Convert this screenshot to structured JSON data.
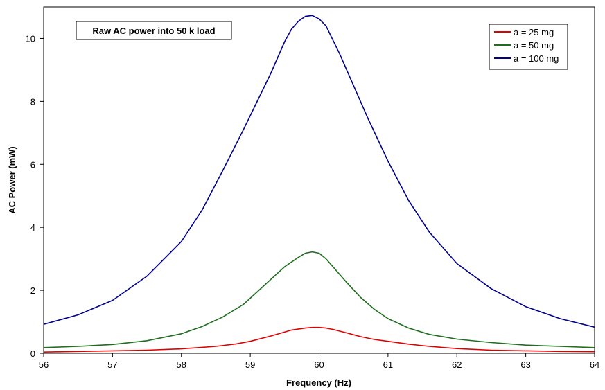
{
  "chart_data": {
    "type": "line",
    "title": "Raw AC power into 50 k load",
    "xlabel": "Frequency (Hz)",
    "ylabel": "AC Power (mW)",
    "xlim": [
      56,
      64
    ],
    "ylim": [
      0,
      11
    ],
    "x_ticks": [
      "56",
      "57",
      "58",
      "59",
      "60",
      "61",
      "62",
      "63",
      "64"
    ],
    "y_ticks": [
      "0",
      "2",
      "4",
      "6",
      "8",
      "10"
    ],
    "grid": false,
    "legend_position": "top-right",
    "series": [
      {
        "name": "a = 25 mg",
        "color": "#e00000",
        "x": [
          56.0,
          56.5,
          57.0,
          57.5,
          58.0,
          58.5,
          58.8,
          59.0,
          59.3,
          59.6,
          59.8,
          59.9,
          60.0,
          60.1,
          60.2,
          60.4,
          60.6,
          60.8,
          61.0,
          61.3,
          61.6,
          62.0,
          62.5,
          63.0,
          63.5,
          64.0
        ],
        "values": [
          0.04,
          0.06,
          0.08,
          0.1,
          0.14,
          0.22,
          0.3,
          0.38,
          0.55,
          0.74,
          0.8,
          0.82,
          0.82,
          0.8,
          0.76,
          0.65,
          0.53,
          0.44,
          0.38,
          0.29,
          0.22,
          0.15,
          0.1,
          0.08,
          0.06,
          0.05
        ]
      },
      {
        "name": "a = 50 mg",
        "color": "#1e6e1e",
        "x": [
          56.0,
          56.5,
          57.0,
          57.5,
          58.0,
          58.3,
          58.6,
          58.9,
          59.1,
          59.3,
          59.5,
          59.7,
          59.8,
          59.9,
          60.0,
          60.1,
          60.2,
          60.4,
          60.6,
          60.8,
          61.0,
          61.3,
          61.6,
          62.0,
          62.5,
          63.0,
          63.5,
          64.0
        ],
        "values": [
          0.18,
          0.22,
          0.28,
          0.4,
          0.62,
          0.85,
          1.15,
          1.55,
          1.95,
          2.35,
          2.75,
          3.05,
          3.18,
          3.22,
          3.18,
          3.0,
          2.75,
          2.25,
          1.78,
          1.4,
          1.1,
          0.8,
          0.6,
          0.45,
          0.34,
          0.26,
          0.22,
          0.18
        ]
      },
      {
        "name": "a = 100 mg",
        "color": "#00008b",
        "x": [
          56.0,
          56.5,
          57.0,
          57.5,
          58.0,
          58.3,
          58.6,
          58.9,
          59.1,
          59.3,
          59.5,
          59.6,
          59.7,
          59.8,
          59.9,
          60.0,
          60.1,
          60.3,
          60.5,
          60.7,
          61.0,
          61.3,
          61.6,
          62.0,
          62.5,
          63.0,
          63.5,
          64.0
        ],
        "values": [
          0.92,
          1.22,
          1.68,
          2.45,
          3.55,
          4.55,
          5.8,
          7.1,
          8.0,
          8.9,
          9.9,
          10.3,
          10.55,
          10.7,
          10.73,
          10.62,
          10.4,
          9.5,
          8.5,
          7.5,
          6.1,
          4.85,
          3.85,
          2.85,
          2.05,
          1.48,
          1.1,
          0.83
        ]
      }
    ]
  }
}
